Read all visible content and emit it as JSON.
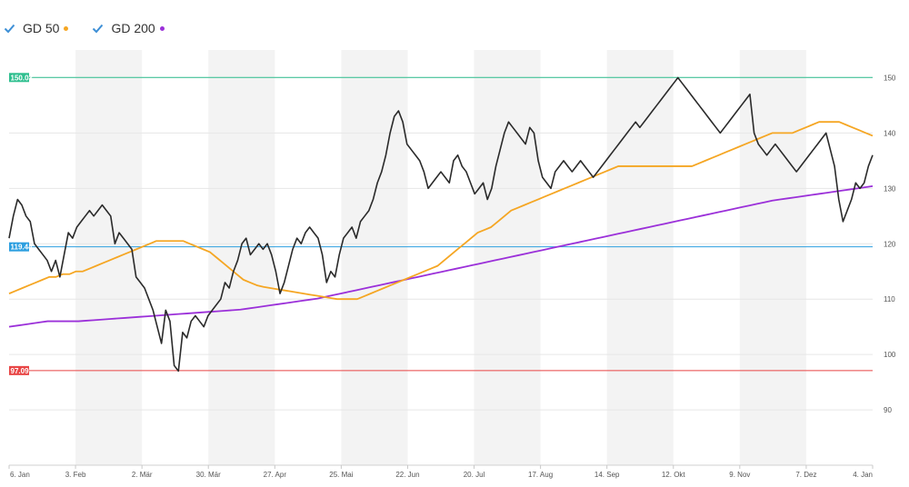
{
  "legend": {
    "items": [
      {
        "label": "GD 50",
        "color": "#f5a623",
        "checked": true
      },
      {
        "label": "GD 200",
        "color": "#9b30d9",
        "checked": true
      }
    ],
    "check_color": "#3d8fd6"
  },
  "chart_data": {
    "type": "line",
    "ylim": [
      80,
      155
    ],
    "y_ticks": [
      90,
      100,
      110,
      120,
      130,
      140,
      150
    ],
    "x_ticks": [
      "6. Jan",
      "3. Feb",
      "2. Mär",
      "30. Mär",
      "27. Apr",
      "25. Mai",
      "22. Jun",
      "20. Jul",
      "17. Aug",
      "14. Sep",
      "12. Okt",
      "9. Nov",
      "7. Dez",
      "4. Jan"
    ],
    "reference_lines": [
      {
        "label": "150.03",
        "value": 150.03,
        "color": "#2fbf8f"
      },
      {
        "label": "119.44",
        "value": 119.44,
        "color": "#2d9fe0"
      },
      {
        "label": "97.09",
        "value": 97.09,
        "color": "#e84545"
      }
    ],
    "series": [
      {
        "name": "",
        "color": "#2a2a2a",
        "values": [
          121,
          125,
          128,
          127,
          125,
          124,
          120,
          119,
          118,
          117,
          115,
          117,
          114,
          118,
          122,
          121,
          123,
          124,
          125,
          126,
          125,
          126,
          127,
          126,
          125,
          120,
          122,
          121,
          120,
          119,
          114,
          113,
          112,
          110,
          108,
          105,
          102,
          108,
          106,
          98,
          97,
          104,
          103,
          106,
          107,
          106,
          105,
          107,
          108,
          109,
          110,
          113,
          112,
          115,
          117,
          120,
          121,
          118,
          119,
          120,
          119,
          120,
          118,
          115,
          111,
          113,
          116,
          119,
          121,
          120,
          122,
          123,
          122,
          121,
          118,
          113,
          115,
          114,
          118,
          121,
          122,
          123,
          121,
          124,
          125,
          126,
          128,
          131,
          133,
          136,
          140,
          143,
          144,
          142,
          138,
          137,
          136,
          135,
          133,
          130,
          131,
          132,
          133,
          132,
          131,
          135,
          136,
          134,
          133,
          131,
          129,
          130,
          131,
          128,
          130,
          134,
          137,
          140,
          142,
          141,
          140,
          139,
          138,
          141,
          140,
          135,
          132,
          131,
          130,
          133,
          134,
          135,
          134,
          133,
          134,
          135,
          134,
          133,
          132,
          133,
          134,
          135,
          136,
          137,
          138,
          139,
          140,
          141,
          142,
          141,
          142,
          143,
          144,
          145,
          146,
          147,
          148,
          149,
          150,
          149,
          148,
          147,
          146,
          145,
          144,
          143,
          142,
          141,
          140,
          141,
          142,
          143,
          144,
          145,
          146,
          147,
          140,
          138,
          137,
          136,
          137,
          138,
          137,
          136,
          135,
          134,
          133,
          134,
          135,
          136,
          137,
          138,
          139,
          140,
          137,
          134,
          128,
          124,
          126,
          128,
          131,
          130,
          131,
          134,
          136
        ]
      },
      {
        "name": "GD 50",
        "color": "#f5a623",
        "values": [
          111,
          111.5,
          112,
          112.5,
          113,
          113.5,
          114,
          114,
          114.5,
          114.5,
          115,
          115,
          115.5,
          116,
          116.5,
          117,
          117.5,
          118,
          118.5,
          119,
          119.5,
          120,
          120.5,
          120.5,
          120.5,
          120.5,
          120.5,
          120,
          119.5,
          119,
          118.5,
          117.5,
          116.5,
          115.5,
          114.5,
          113.5,
          113,
          112.5,
          112.2,
          112,
          111.8,
          111.6,
          111.4,
          111.2,
          111,
          110.8,
          110.6,
          110.4,
          110.2,
          110,
          110,
          110,
          110,
          110.5,
          111,
          111.5,
          112,
          112.5,
          113,
          113.5,
          114,
          114.5,
          115,
          115.5,
          116,
          117,
          118,
          119,
          120,
          121,
          122,
          122.5,
          123,
          124,
          125,
          126,
          126.5,
          127,
          127.5,
          128,
          128.5,
          129,
          129.5,
          130,
          130.5,
          131,
          131.5,
          132,
          132.5,
          133,
          133.5,
          134,
          134,
          134,
          134,
          134,
          134,
          134,
          134,
          134,
          134,
          134,
          134,
          134.5,
          135,
          135.5,
          136,
          136.5,
          137,
          137.5,
          138,
          138.5,
          139,
          139.5,
          140,
          140,
          140,
          140,
          140.5,
          141,
          141.5,
          142,
          142,
          142,
          142,
          141.5,
          141,
          140.5,
          140,
          139.5
        ]
      },
      {
        "name": "GD 200",
        "color": "#9b30d9",
        "values": [
          105,
          105.2,
          105.4,
          105.6,
          105.8,
          106,
          106,
          106,
          106,
          106,
          106.1,
          106.2,
          106.3,
          106.4,
          106.5,
          106.6,
          106.7,
          106.8,
          106.9,
          107,
          107.1,
          107.2,
          107.3,
          107.4,
          107.5,
          107.6,
          107.7,
          107.8,
          107.9,
          108,
          108.1,
          108.3,
          108.5,
          108.7,
          108.9,
          109.1,
          109.3,
          109.5,
          109.7,
          109.9,
          110.1,
          110.4,
          110.7,
          111,
          111.3,
          111.6,
          111.9,
          112.2,
          112.5,
          112.8,
          113.1,
          113.4,
          113.7,
          114,
          114.3,
          114.6,
          114.9,
          115.2,
          115.5,
          115.8,
          116.1,
          116.4,
          116.7,
          117,
          117.3,
          117.6,
          117.9,
          118.2,
          118.5,
          118.8,
          119.1,
          119.4,
          119.7,
          120,
          120.3,
          120.6,
          120.9,
          121.2,
          121.5,
          121.8,
          122.1,
          122.4,
          122.7,
          123,
          123.3,
          123.6,
          123.9,
          124.2,
          124.5,
          124.8,
          125.1,
          125.4,
          125.7,
          126,
          126.3,
          126.6,
          126.9,
          127.2,
          127.5,
          127.8,
          128,
          128.2,
          128.4,
          128.6,
          128.8,
          129,
          129.2,
          129.4,
          129.6,
          129.8,
          130,
          130.2,
          130.4
        ]
      }
    ]
  }
}
